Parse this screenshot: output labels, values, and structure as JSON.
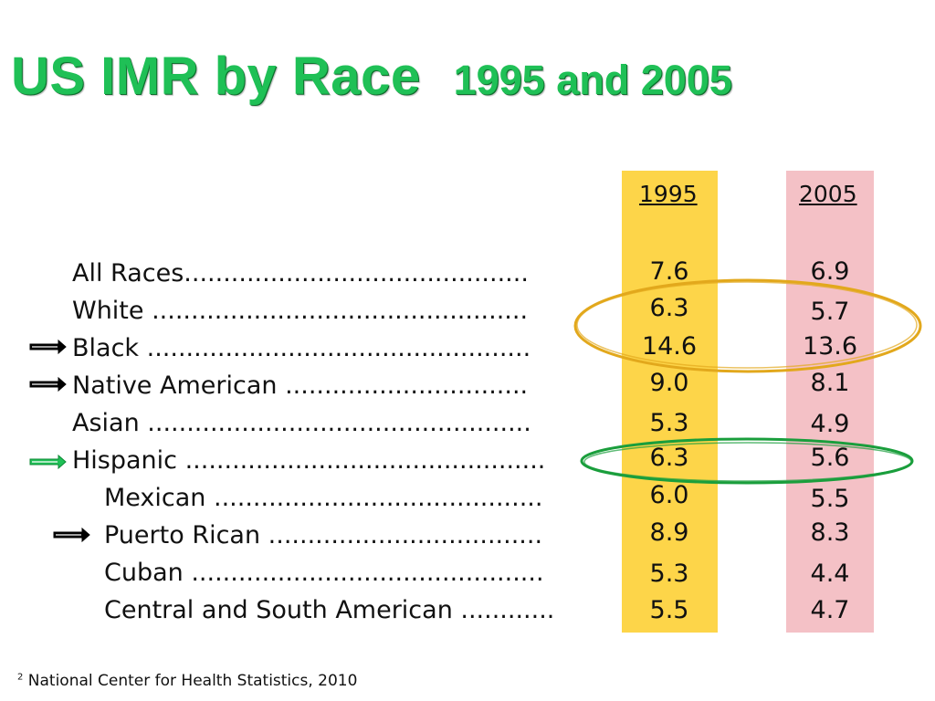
{
  "title": {
    "main": "US IMR by Race",
    "sub": "1995 and 2005"
  },
  "columns": {
    "y1995": "1995",
    "y2005": "2005"
  },
  "rows": [
    {
      "label": "All Races............................................",
      "v1995": "7.6",
      "v2005": "6.9"
    },
    {
      "label": "White ................................................",
      "v1995": "6.3",
      "v2005": "5.7"
    },
    {
      "label": "Black .................................................",
      "v1995": "14.6",
      "v2005": "13.6"
    },
    {
      "label": "Native American ...............................",
      "v1995": "9.0",
      "v2005": "8.1"
    },
    {
      "label": "Asian .................................................",
      "v1995": "5.3",
      "v2005": "4.9"
    },
    {
      "label": "Hispanic ..............................................",
      "v1995": "6.3",
      "v2005": "5.6"
    },
    {
      "label": "Mexican ..........................................",
      "v1995": "6.0",
      "v2005": "5.5"
    },
    {
      "label": "Puerto Rican ...................................",
      "v1995": "8.9",
      "v2005": "8.3"
    },
    {
      "label": "Cuban .............................................",
      "v1995": "5.3",
      "v2005": "4.4"
    },
    {
      "label": "Central and South American ............",
      "v1995": "5.5",
      "v2005": "4.7"
    }
  ],
  "footnote": {
    "marker": "2",
    "text": " National Center for Health Statistics, 2010"
  },
  "colors": {
    "title": "#1fc056",
    "col_1995": "#fdd549",
    "col_2005": "#f4c1c6",
    "ellipse_gold": "#e2a81c",
    "ellipse_green": "#1a9e3c",
    "arrow_black": "#000000",
    "arrow_green": "#1fc056"
  },
  "icons": {
    "black_arrow": "right-arrow-icon",
    "green_arrow": "right-arrow-icon"
  }
}
